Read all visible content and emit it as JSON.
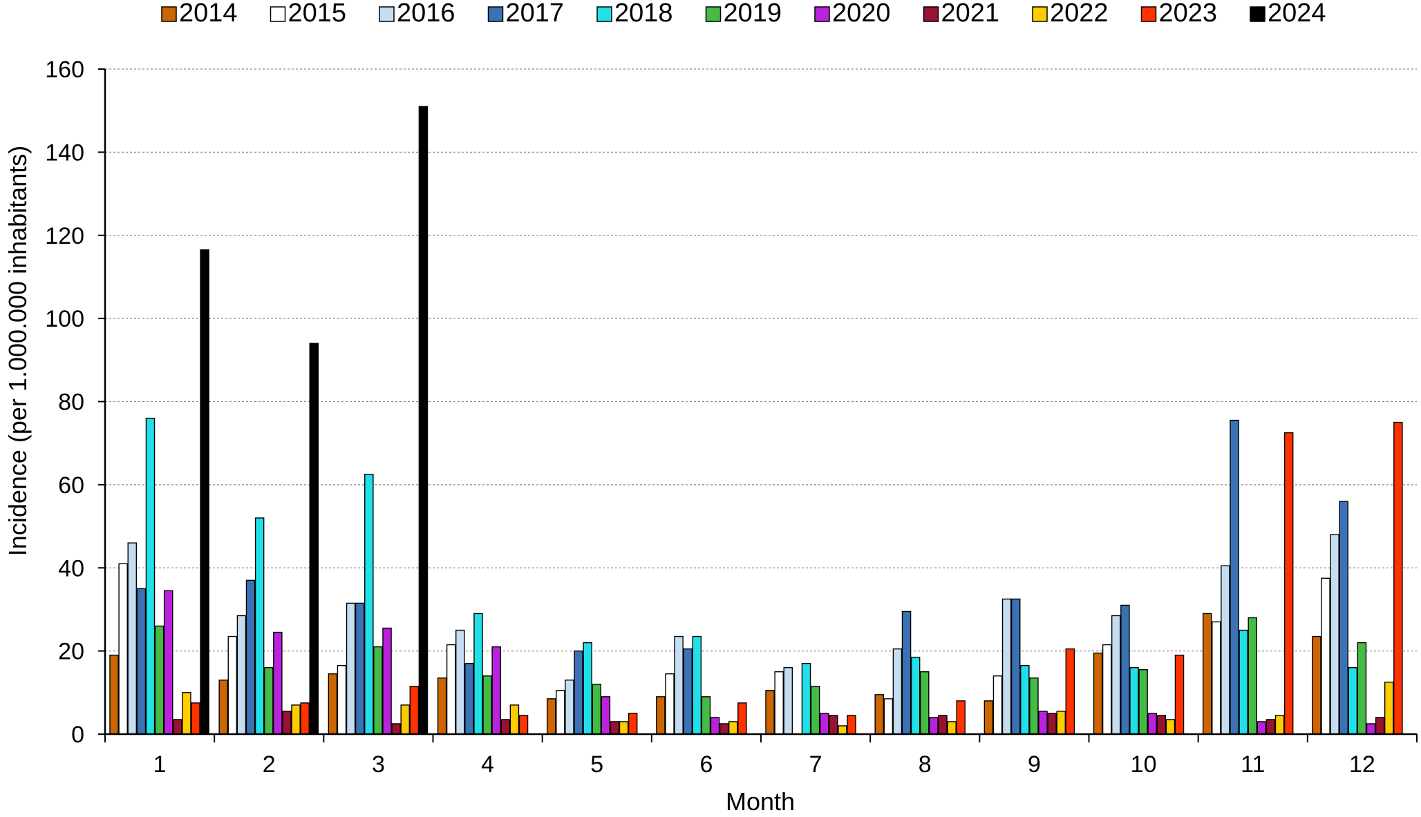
{
  "chart_data": {
    "type": "bar",
    "title": "",
    "xlabel": "Month",
    "ylabel": "Incidence  (per 1.000.000 inhabitants)",
    "ylim": [
      0,
      160
    ],
    "yticks": [
      0,
      20,
      40,
      60,
      80,
      100,
      120,
      140,
      160
    ],
    "grid": true,
    "legend_position": "top",
    "categories": [
      "1",
      "2",
      "3",
      "4",
      "5",
      "6",
      "7",
      "8",
      "9",
      "10",
      "11",
      "12"
    ],
    "series": [
      {
        "name": "2014",
        "color": "#CC6600",
        "values": [
          19,
          13,
          14.5,
          13.5,
          8.5,
          9,
          10.5,
          9.5,
          8,
          19.5,
          29,
          23.5
        ]
      },
      {
        "name": "2015",
        "color": "#FFFFFF",
        "values": [
          41,
          23.5,
          16.5,
          21.5,
          10.5,
          14.5,
          15,
          8.5,
          14,
          21.5,
          27,
          37.5
        ]
      },
      {
        "name": "2016",
        "color": "#C5DDF0",
        "values": [
          46,
          28.5,
          31.5,
          25,
          13,
          23.5,
          16,
          20.5,
          32.5,
          28.5,
          40.5,
          48
        ]
      },
      {
        "name": "2017",
        "color": "#3A72B5",
        "values": [
          35,
          37,
          31.5,
          17,
          20,
          20.5,
          0,
          29.5,
          32.5,
          31,
          75.5,
          56
        ]
      },
      {
        "name": "2018",
        "color": "#22E0E8",
        "values": [
          76,
          52,
          62.5,
          29,
          22,
          23.5,
          17,
          18.5,
          16.5,
          16,
          25,
          16
        ]
      },
      {
        "name": "2019",
        "color": "#44BB44",
        "values": [
          26,
          16,
          21,
          14,
          12,
          9,
          11.5,
          15,
          13.5,
          15.5,
          28,
          22
        ]
      },
      {
        "name": "2020",
        "color": "#BB22DD",
        "values": [
          34.5,
          24.5,
          25.5,
          21,
          9,
          4,
          5,
          4,
          5.5,
          5,
          3,
          2.5
        ]
      },
      {
        "name": "2021",
        "color": "#991133",
        "values": [
          3.5,
          5.5,
          2.5,
          3.5,
          3,
          2.5,
          4.5,
          4.5,
          5,
          4.5,
          3.5,
          4
        ]
      },
      {
        "name": "2022",
        "color": "#FFCC00",
        "values": [
          10,
          7,
          7,
          7,
          3,
          3,
          2,
          3,
          5.5,
          3.5,
          4.5,
          12.5
        ]
      },
      {
        "name": "2023",
        "color": "#FF3300",
        "values": [
          7.5,
          7.5,
          11.5,
          4.5,
          5,
          7.5,
          4.5,
          8,
          20.5,
          19,
          72.5,
          75
        ]
      },
      {
        "name": "2024",
        "color": "#000000",
        "values": [
          116.5,
          94,
          151,
          null,
          null,
          null,
          null,
          null,
          null,
          null,
          null,
          null
        ]
      }
    ]
  }
}
